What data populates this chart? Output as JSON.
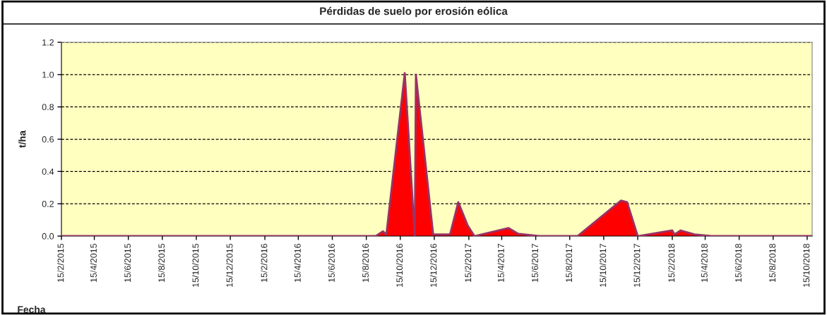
{
  "chart_data": {
    "type": "area",
    "title": "Pérdidas de suelo por erosión eólica",
    "xlabel": "Fecha",
    "ylabel": "t/ha",
    "x": [
      "2015-02-15",
      "2016-09-01",
      "2016-09-14",
      "2016-09-20",
      "2016-10-23",
      "2016-11-10",
      "2016-11-12",
      "2016-12-13",
      "2017-01-11",
      "2017-01-13",
      "2017-01-27",
      "2017-02-13",
      "2017-02-25",
      "2017-04-27",
      "2017-05-14",
      "2017-06-21",
      "2017-08-29",
      "2017-11-15",
      "2017-11-26",
      "2017-12-15",
      "2018-02-15",
      "2018-02-19",
      "2018-03-02",
      "2018-03-27",
      "2018-04-26",
      "2018-10-24"
    ],
    "series": [
      {
        "color": "#ff0000",
        "values": [
          0,
          0,
          0.03,
          0.01,
          1.01,
          0,
          1.0,
          0.01,
          0.01,
          0.02,
          0.21,
          0.065,
          0,
          0.05,
          0.015,
          0,
          0,
          0.22,
          0.21,
          0,
          0.035,
          0.01,
          0.035,
          0.01,
          0,
          0
        ]
      }
    ],
    "xlim": [
      "2015-02-15",
      "2018-10-24"
    ],
    "xticks": [
      {
        "value": "2015-02-15",
        "label": "15/2/2015"
      },
      {
        "value": "2015-04-15",
        "label": "15/4/2015"
      },
      {
        "value": "2015-06-15",
        "label": "15/6/2015"
      },
      {
        "value": "2015-08-15",
        "label": "15/8/2015"
      },
      {
        "value": "2015-10-15",
        "label": "15/10/2015"
      },
      {
        "value": "2015-12-15",
        "label": "15/12/2015"
      },
      {
        "value": "2016-02-15",
        "label": "15/2/2016"
      },
      {
        "value": "2016-04-15",
        "label": "15/4/2016"
      },
      {
        "value": "2016-06-15",
        "label": "15/6/2016"
      },
      {
        "value": "2016-08-15",
        "label": "15/8/2016"
      },
      {
        "value": "2016-10-15",
        "label": "15/10/2016"
      },
      {
        "value": "2016-12-15",
        "label": "15/12/2016"
      },
      {
        "value": "2017-02-15",
        "label": "15/2/2017"
      },
      {
        "value": "2017-04-15",
        "label": "15/4/2017"
      },
      {
        "value": "2017-06-15",
        "label": "15/6/2017"
      },
      {
        "value": "2017-08-15",
        "label": "15/8/2017"
      },
      {
        "value": "2017-10-15",
        "label": "15/10/2017"
      },
      {
        "value": "2017-12-15",
        "label": "15/12/2017"
      },
      {
        "value": "2018-02-15",
        "label": "15/2/2018"
      },
      {
        "value": "2018-04-15",
        "label": "15/4/2018"
      },
      {
        "value": "2018-06-15",
        "label": "15/6/2018"
      },
      {
        "value": "2018-08-15",
        "label": "15/8/2018"
      },
      {
        "value": "2018-10-15",
        "label": "15/10/2018"
      }
    ],
    "ylim": [
      0,
      1.2
    ],
    "yticks": [
      {
        "value": 0,
        "label": "0.0"
      },
      {
        "value": 0.2,
        "label": "0.2"
      },
      {
        "value": 0.4,
        "label": "0.4"
      },
      {
        "value": 0.6,
        "label": "0.6"
      },
      {
        "value": 0.8,
        "label": "0.8"
      },
      {
        "value": 1.0,
        "label": "1.0"
      },
      {
        "value": 1.2,
        "label": "1.2"
      }
    ],
    "grid": "y",
    "legend": false
  }
}
